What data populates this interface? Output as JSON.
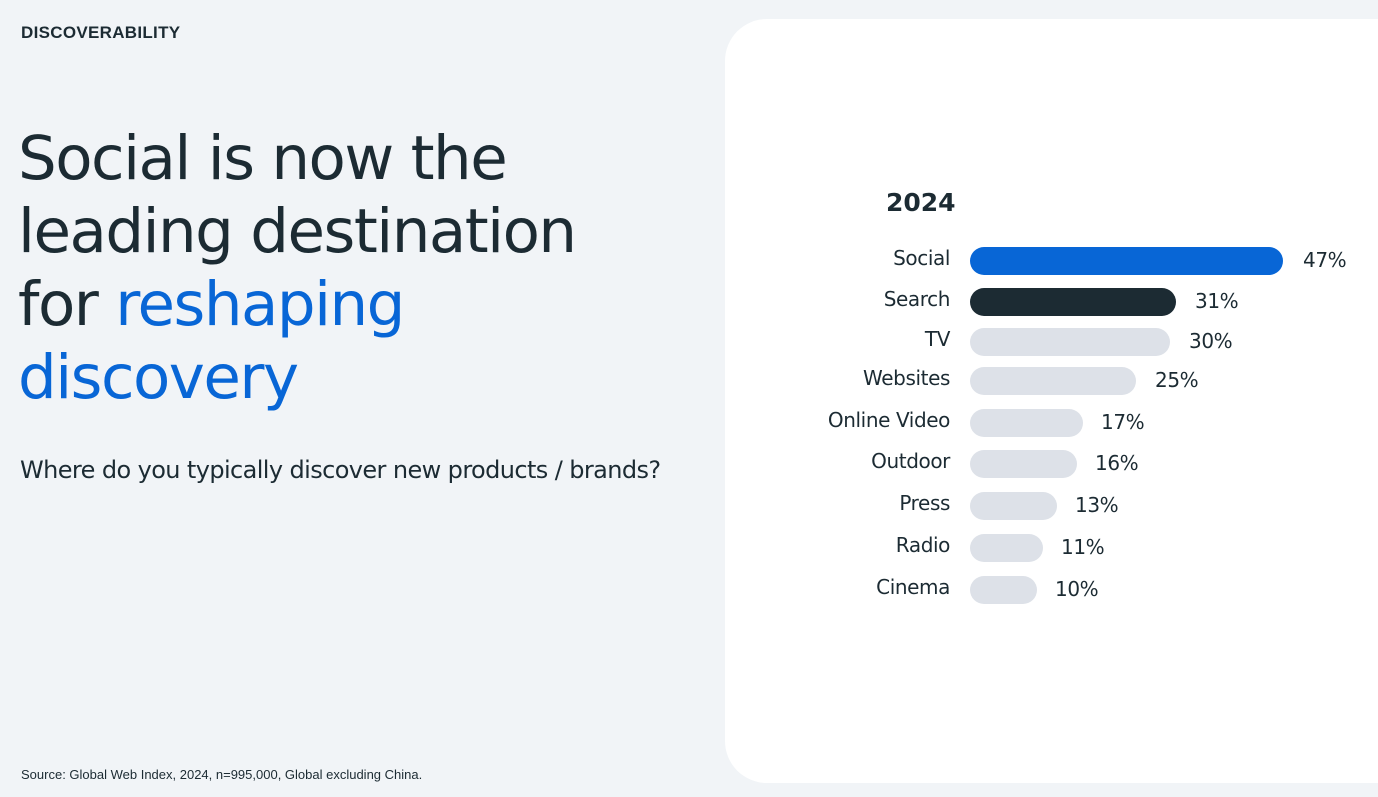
{
  "eyebrow": "DISCOVERABILITY",
  "headline": {
    "line1": "Social is now the",
    "line2": "leading destination",
    "line3_plain": "for ",
    "line3_accent": "reshaping",
    "line4_accent": "discovery"
  },
  "subhead": "Where do you typically discover new products / brands?",
  "source": "Source: Global Web Index, 2024, n=995,000, Global excluding China.",
  "colors": {
    "background": "#f1f4f7",
    "card": "#ffffff",
    "text": "#1c2b33",
    "accent_blue": "#0866d6",
    "bar_social": "#0866d6",
    "bar_search": "#1c2b33",
    "bar_other": "#dde1e8"
  },
  "chart": {
    "title": "2024",
    "rows": [
      {
        "label": "Social",
        "value_label": "47%"
      },
      {
        "label": "Search",
        "value_label": "31%"
      },
      {
        "label": "TV",
        "value_label": "30%"
      },
      {
        "label": "Websites",
        "value_label": "25%"
      },
      {
        "label": "Online Video",
        "value_label": "17%"
      },
      {
        "label": "Outdoor",
        "value_label": "16%"
      },
      {
        "label": "Press",
        "value_label": "13%"
      },
      {
        "label": "Radio",
        "value_label": "11%"
      },
      {
        "label": "Cinema",
        "value_label": "10%"
      }
    ]
  },
  "chart_data": {
    "type": "bar",
    "orientation": "horizontal",
    "title": "2024",
    "categories": [
      "Social",
      "Search",
      "TV",
      "Websites",
      "Online Video",
      "Outdoor",
      "Press",
      "Radio",
      "Cinema"
    ],
    "values": [
      47,
      31,
      30,
      25,
      17,
      16,
      13,
      11,
      10
    ],
    "value_labels": [
      "47%",
      "31%",
      "30%",
      "25%",
      "17%",
      "16%",
      "13%",
      "11%",
      "10%"
    ],
    "bar_colors": [
      "#0866d6",
      "#1c2b33",
      "#dde1e8",
      "#dde1e8",
      "#dde1e8",
      "#dde1e8",
      "#dde1e8",
      "#dde1e8",
      "#dde1e8"
    ],
    "xlabel": "",
    "ylabel": "",
    "unit": "%",
    "grid": false,
    "legend": "none",
    "question": "Where do you typically discover new products / brands?",
    "source": "Global Web Index, 2024, n=995,000, Global excluding China."
  }
}
